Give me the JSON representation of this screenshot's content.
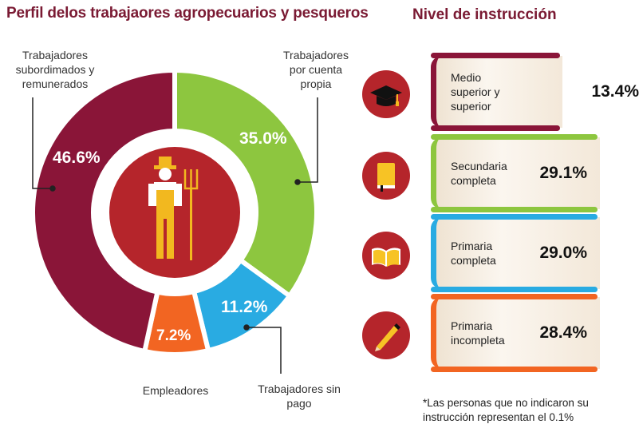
{
  "title": "Perfil delos trabajaores agropecuarios y pesqueros",
  "education_title": "Nivel de instrucción",
  "chart_data": [
    {
      "type": "pie",
      "title": "Perfil delos trabajaores agropecuarios y pesqueros",
      "slices": [
        {
          "label": "Trabajadores por cuenta propia",
          "value": 35.0,
          "value_label": "35.0%",
          "color": "#8dc63f"
        },
        {
          "label": "Trabajadores sin pago",
          "value": 11.2,
          "value_label": "11.2%",
          "color": "#29abe2"
        },
        {
          "label": "Empleadores",
          "value": 7.2,
          "value_label": "7.2%",
          "color": "#f26522"
        },
        {
          "label": "Trabajadores subordimados y remunerados",
          "value": 46.6,
          "value_label": "46.6%",
          "color": "#8a1538"
        }
      ]
    },
    {
      "type": "table",
      "title": "Nivel de instrucción",
      "rows": [
        {
          "label": "Medio superior y superior",
          "value": 13.4,
          "value_label": "13.4%",
          "color": "#8a1538",
          "icon": "graduation-cap-icon"
        },
        {
          "label": "Secundaria completa",
          "value": 29.1,
          "value_label": "29.1%",
          "color": "#8dc63f",
          "icon": "book-icon"
        },
        {
          "label": "Primaria completa",
          "value": 29.0,
          "value_label": "29.0%",
          "color": "#29abe2",
          "icon": "open-book-icon"
        },
        {
          "label": "Primaria incompleta",
          "value": 28.4,
          "value_label": "28.4%",
          "color": "#f26522",
          "icon": "pencil-icon"
        }
      ]
    }
  ],
  "note": "*Las personas que no indicaron su instrucción representan el 0.1%"
}
